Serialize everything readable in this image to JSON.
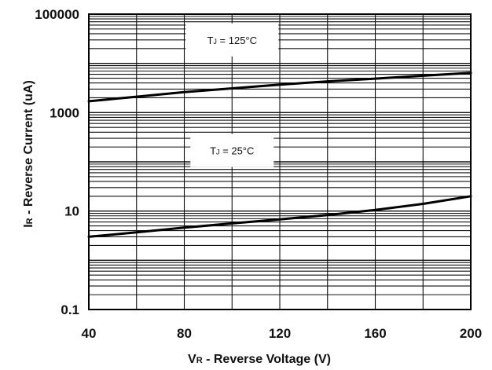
{
  "chart_data": {
    "type": "line",
    "title": "",
    "xlabel": "VR - Reverse Voltage (V)",
    "xlabel_main": "V",
    "xlabel_sub": "R",
    "xlabel_rest": " - Reverse Voltage (V)",
    "ylabel": "IR - Reverse Current (uA)",
    "ylabel_main": "I",
    "ylabel_sub": "R",
    "ylabel_rest": " - Reverse Current (uA)",
    "xlim": [
      40,
      200
    ],
    "ylim": [
      0.1,
      100000
    ],
    "yscale": "log",
    "grid": true,
    "x_ticks": [
      40,
      80,
      120,
      160,
      200
    ],
    "x_tick_labels": [
      "40",
      "80",
      "120",
      "160",
      "200"
    ],
    "y_ticks": [
      0.1,
      10,
      1000,
      100000
    ],
    "y_tick_labels": [
      "0.1",
      "10",
      "1000",
      "100000"
    ],
    "series": [
      {
        "x": [
          40,
          60,
          80,
          100,
          120,
          140,
          160,
          180,
          200
        ],
        "values": [
          1700,
          2100,
          2600,
          3100,
          3700,
          4300,
          4900,
          5600,
          6400
        ],
        "color": "#000000"
      },
      {
        "x": [
          40,
          60,
          80,
          100,
          120,
          140,
          160,
          180,
          200
        ],
        "values": [
          3.0,
          3.7,
          4.6,
          5.6,
          6.8,
          8.3,
          10.5,
          14.0,
          20.0
        ],
        "color": "#000000"
      }
    ],
    "annotations": [
      {
        "label_main": "T",
        "label_sub": "J",
        "label_rest": " = 125°C",
        "x": 100,
        "y": 30000
      },
      {
        "label_main": "T",
        "label_sub": "J",
        "label_rest": " = 25°C",
        "x": 100,
        "y": 170
      }
    ]
  },
  "colors": {
    "grid": "#111111",
    "frame": "#000000",
    "curve": "#000000",
    "annotation_bg": "#ffffff"
  }
}
